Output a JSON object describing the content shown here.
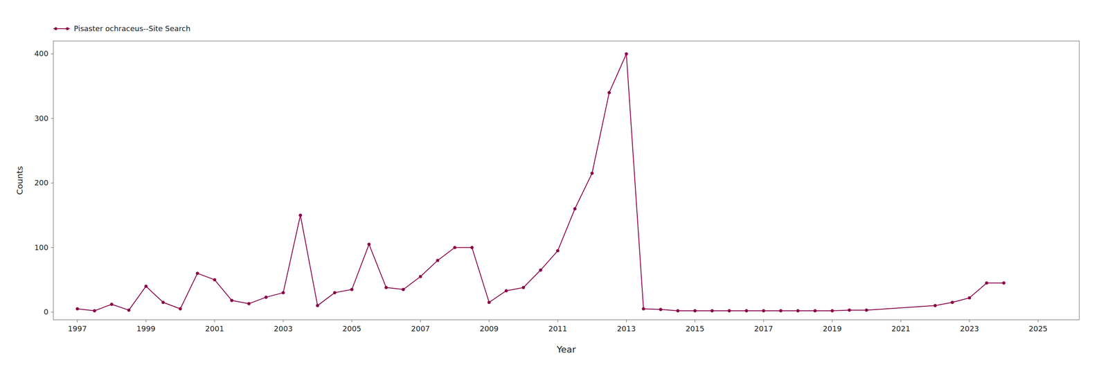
{
  "chart_data": {
    "type": "line",
    "x": [
      1997,
      1997.5,
      1998,
      1998.5,
      1999,
      1999.5,
      2000,
      2000.5,
      2001,
      2001.5,
      2002,
      2002.5,
      2003,
      2003.5,
      2004,
      2004.5,
      2005,
      2005.5,
      2006,
      2006.5,
      2007,
      2007.5,
      2008,
      2008.5,
      2009,
      2009.5,
      2010,
      2010.5,
      2011,
      2011.5,
      2012,
      2012.5,
      2013,
      2013.5,
      2014,
      2014.5,
      2015,
      2015.5,
      2016,
      2016.5,
      2017,
      2017.5,
      2018,
      2018.5,
      2019,
      2019.5,
      2020,
      2022,
      2022.5,
      2023,
      2023.5,
      2024
    ],
    "series": [
      {
        "name": "Pisaster ochraceus--Site Search",
        "color": "#8B0047",
        "marker": "circle",
        "line_style": "solid",
        "values": [
          5,
          2,
          12,
          3,
          40,
          15,
          5,
          60,
          50,
          18,
          13,
          23,
          30,
          150,
          10,
          30,
          35,
          105,
          38,
          35,
          55,
          80,
          100,
          100,
          15,
          33,
          38,
          65,
          95,
          160,
          215,
          340,
          400,
          5,
          4,
          2,
          2,
          2,
          2,
          2,
          2,
          2,
          2,
          2,
          2,
          3,
          3,
          10,
          15,
          22,
          45,
          45
        ]
      }
    ],
    "xlabel": "Year",
    "ylabel": "Counts",
    "xlim": [
      1996.3,
      2026.2
    ],
    "ylim": [
      -12,
      420
    ],
    "xticks": [
      1997,
      1999,
      2001,
      2003,
      2005,
      2007,
      2009,
      2011,
      2013,
      2015,
      2017,
      2019,
      2021,
      2023,
      2025
    ],
    "yticks": [
      0,
      100,
      200,
      300,
      400
    ],
    "grid": false,
    "legend": "top-left"
  }
}
